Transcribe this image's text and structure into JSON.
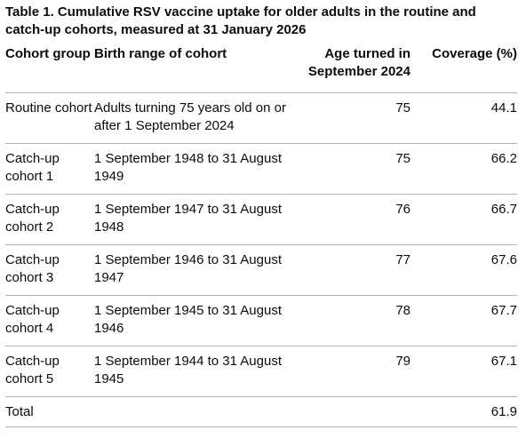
{
  "table": {
    "caption": "Table 1. Cumulative RSV vaccine uptake for older adults in the routine and catch-up cohorts, measured at 31 January 2026",
    "headers": {
      "cohort_group": "Cohort group",
      "birth_range": "Birth range of cohort",
      "age_turned": "Age turned in September 2024",
      "coverage": "Coverage (%)"
    },
    "rows": [
      {
        "cohort": "Routine cohort",
        "birth_range": "Adults turning 75 years old on or after 1 September 2024",
        "age": "75",
        "coverage": "44.1"
      },
      {
        "cohort": "Catch-up cohort 1",
        "birth_range": "1 September 1948 to 31 August 1949",
        "age": "75",
        "coverage": "66.2"
      },
      {
        "cohort": "Catch-up cohort 2",
        "birth_range": "1 September 1947 to 31 August 1948",
        "age": "76",
        "coverage": "66.7"
      },
      {
        "cohort": "Catch-up cohort 3",
        "birth_range": "1 September 1946 to 31 August 1947",
        "age": "77",
        "coverage": "67.6"
      },
      {
        "cohort": "Catch-up cohort 4",
        "birth_range": "1 September 1945 to 31 August 1946",
        "age": "78",
        "coverage": "67.7"
      },
      {
        "cohort": "Catch-up cohort 5",
        "birth_range": "1 September 1944 to 31 August 1945",
        "age": "79",
        "coverage": "67.1"
      }
    ],
    "total": {
      "label": "Total",
      "coverage": "61.9"
    }
  }
}
